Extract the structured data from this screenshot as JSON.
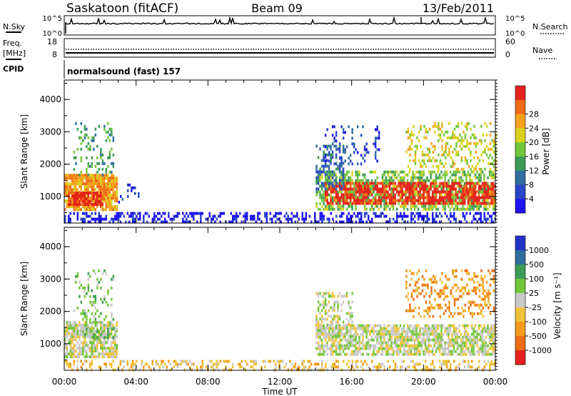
{
  "header": {
    "station": "Saskatoon (fitACF)",
    "beam": "Beam 09",
    "date": "13/Feb/2011"
  },
  "top_panels": {
    "nsky_label": "N.Sky",
    "nsky_ticks": [
      "10^5",
      "10^0"
    ],
    "nsearch_label": "N.Search",
    "nsearch_ticks": [
      "10^5",
      "10^0"
    ],
    "freq_label": "Freq.",
    "freq_unit": "[MHz]",
    "freq_ticks": [
      "18",
      "8"
    ],
    "nave_label": "Nave",
    "nave_ticks": [
      "60",
      "0"
    ],
    "cpid_label": "CPID",
    "cpid_value": "normalsound (fast) 157"
  },
  "chart_data": [
    {
      "type": "heatmap",
      "name": "power",
      "ylabel": "Slant Range [km]",
      "yticks": [
        1000,
        2000,
        3000,
        4000
      ],
      "ylim": [
        180,
        4600
      ],
      "xlim": [
        0,
        24
      ],
      "colorbar": {
        "label": "Power [dB]",
        "ticks": [
          "4",
          "8",
          "12",
          "16",
          "20",
          "24",
          "28"
        ],
        "colors": [
          "#1e14f0",
          "#2a45c8",
          "#2f6e9e",
          "#3b9a55",
          "#73c63a",
          "#d8d21c",
          "#f5a11b",
          "#f06b15",
          "#e5221b"
        ]
      },
      "regions": [
        {
          "t0": 0.0,
          "t1": 2.9,
          "r0": 600,
          "r1": 1700,
          "level": 6,
          "density": 0.85
        },
        {
          "t0": 0.2,
          "t1": 2.2,
          "r0": 750,
          "r1": 1150,
          "level": 8,
          "density": 0.85
        },
        {
          "t0": 0.5,
          "t1": 2.7,
          "r0": 1700,
          "r1": 3300,
          "level": 3,
          "density": 0.25
        },
        {
          "t0": 3.0,
          "t1": 4.1,
          "r0": 800,
          "r1": 1400,
          "level": 1,
          "density": 0.15
        },
        {
          "t0": 0.0,
          "t1": 24.0,
          "r0": 200,
          "r1": 520,
          "level": 0,
          "density": 0.45
        },
        {
          "t0": 14.0,
          "t1": 24.0,
          "r0": 600,
          "r1": 1800,
          "level": 4,
          "density": 0.6
        },
        {
          "t0": 14.5,
          "t1": 24.0,
          "r0": 750,
          "r1": 1450,
          "level": 8,
          "density": 0.7
        },
        {
          "t0": 14.0,
          "t1": 15.5,
          "r0": 1200,
          "r1": 2600,
          "level": 2,
          "density": 0.4
        },
        {
          "t0": 14.5,
          "t1": 17.5,
          "r0": 2000,
          "r1": 3200,
          "level": 1,
          "density": 0.2
        },
        {
          "t0": 19.0,
          "t1": 24.0,
          "r0": 1800,
          "r1": 3300,
          "level": 5,
          "density": 0.3
        }
      ]
    },
    {
      "type": "heatmap",
      "name": "velocity",
      "ylabel": "Slant Range [km]",
      "yticks": [
        1000,
        2000,
        3000,
        4000
      ],
      "ylim": [
        180,
        4600
      ],
      "xlim": [
        0,
        24
      ],
      "xticks": [
        "00:00",
        "04:00",
        "08:00",
        "12:00",
        "16:00",
        "20:00",
        "00:00"
      ],
      "xlabel": "Time UT",
      "colorbar": {
        "label": "Velocity [m s⁻¹]",
        "ticks": [
          "1000",
          "500",
          "100",
          "25",
          "-25",
          "-100",
          "-500",
          "-1000"
        ],
        "colors": [
          "#2233c8",
          "#2f6e9e",
          "#3b9a55",
          "#73c63a",
          "#c8c8c8",
          "#f0c23a",
          "#f39a1e",
          "#f06b15",
          "#e5221b"
        ]
      },
      "regions": [
        {
          "t0": 0.0,
          "t1": 2.9,
          "r0": 600,
          "r1": 1700,
          "level": 4,
          "density": 0.8
        },
        {
          "t0": 0.8,
          "t1": 2.9,
          "r0": 1200,
          "r1": 1500,
          "level": 3,
          "density": 0.6
        },
        {
          "t0": 0.5,
          "t1": 2.7,
          "r0": 1700,
          "r1": 3300,
          "level": 3,
          "density": 0.2
        },
        {
          "t0": 0.0,
          "t1": 24.0,
          "r0": 200,
          "r1": 500,
          "level": 5,
          "density": 0.35
        },
        {
          "t0": 14.0,
          "t1": 24.0,
          "r0": 700,
          "r1": 1600,
          "level": 4,
          "density": 0.75
        },
        {
          "t0": 14.0,
          "t1": 16.0,
          "r0": 1200,
          "r1": 2600,
          "level": 4,
          "density": 0.4
        },
        {
          "t0": 19.0,
          "t1": 24.0,
          "r0": 1800,
          "r1": 3300,
          "level": 6,
          "density": 0.3
        }
      ]
    }
  ]
}
